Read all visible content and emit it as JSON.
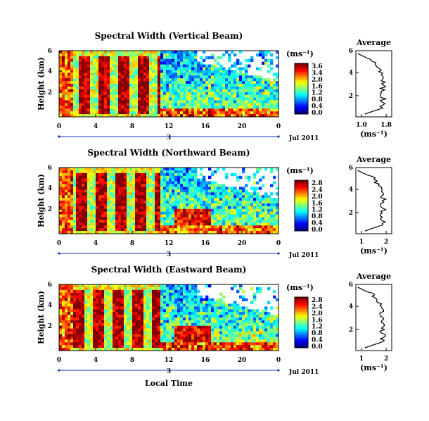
{
  "chart_data": [
    {
      "type": "heatmap",
      "title": "Spectral Width (Vertical Beam)",
      "ylabel": "Height (km)",
      "x_ticks": [
        "0",
        "4",
        "8",
        "12",
        "16",
        "20",
        "0"
      ],
      "y_ticks": [
        "6",
        "4",
        "2"
      ],
      "date_label": "Jul 2011",
      "day_marker": "3",
      "colorbar": {
        "unit_label": "(ms⁻¹)",
        "tick_labels": [
          "3.6",
          "3.4",
          "2.0",
          "1.6",
          "1.2",
          "0.8",
          "0.4",
          "0.0"
        ]
      },
      "average": {
        "title": "Average",
        "xlabel": "(ms⁻¹)",
        "x_ticks": [
          "1.0",
          "1.8"
        ],
        "y_ticks": [
          "6",
          "4",
          "2"
        ]
      }
    },
    {
      "type": "heatmap",
      "title": "Spectral Width (Northward Beam)",
      "ylabel": "Height (km)",
      "x_ticks": [
        "0",
        "4",
        "8",
        "12",
        "16",
        "20",
        "0"
      ],
      "y_ticks": [
        "6",
        "4",
        "2"
      ],
      "date_label": "Jul 2011",
      "day_marker": "3",
      "colorbar": {
        "unit_label": "(ms⁻¹)",
        "tick_labels": [
          "2.8",
          "2.4",
          "2.0",
          "1.6",
          "1.2",
          "0.8",
          "0.4",
          "0.0"
        ]
      },
      "average": {
        "title": "Average",
        "xlabel": "(ms⁻¹)",
        "x_ticks": [
          "1",
          "2"
        ],
        "y_ticks": [
          "6",
          "4",
          "2"
        ]
      }
    },
    {
      "type": "heatmap",
      "title": "Spectral Width (Eastward Beam)",
      "ylabel": "Height (km)",
      "x_ticks": [
        "0",
        "4",
        "8",
        "12",
        "16",
        "20",
        "0"
      ],
      "y_ticks": [
        "6",
        "4",
        "2"
      ],
      "date_label": "Jul 2011",
      "day_marker": "3",
      "xlabel": "Local Time",
      "colorbar": {
        "unit_label": "(ms⁻¹)",
        "tick_labels": [
          "2.8",
          "2.4",
          "2.0",
          "1.6",
          "1.2",
          "0.8",
          "0.4",
          "0.0"
        ]
      },
      "average": {
        "title": "Average",
        "xlabel": "(ms⁻¹)",
        "x_ticks": [
          "1",
          "2"
        ],
        "y_ticks": [
          "6",
          "4",
          "2"
        ]
      }
    }
  ]
}
